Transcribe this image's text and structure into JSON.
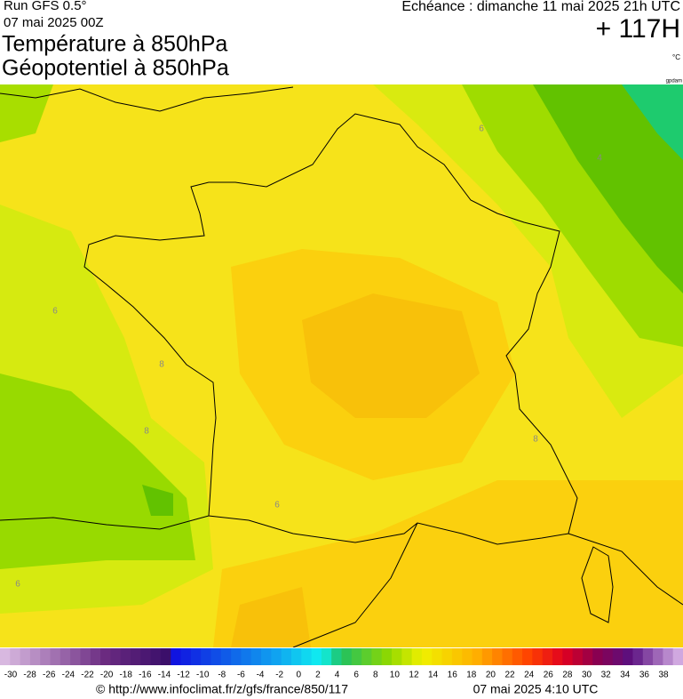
{
  "header": {
    "run": "Run GFS 0.5°",
    "date": "07 mai 2025 00Z",
    "title1": "Température à 850hPa",
    "title2": "Géopotentiel à 850hPa",
    "echeance": "Echéance : dimanche 11 mai 2025 21h UTC",
    "lead": "+ 117H",
    "unit": "°C",
    "credit": "gpdam"
  },
  "contour_labels": [
    "6",
    "4",
    "6",
    "6",
    "8",
    "8",
    "8",
    "6"
  ],
  "colorbar": {
    "labels": [
      -30,
      -28,
      -26,
      -24,
      -22,
      -20,
      -18,
      -16,
      -14,
      -12,
      -10,
      -8,
      -6,
      -4,
      -2,
      0,
      2,
      4,
      6,
      8,
      10,
      12,
      14,
      16,
      18,
      20,
      22,
      24,
      26,
      28,
      30,
      32,
      34,
      36,
      38
    ]
  },
  "footer": {
    "url": "© http://www.infoclimat.fr/z/gfs/france/850/117",
    "timestamp": "07 mai 2025  4:10 UTC"
  }
}
